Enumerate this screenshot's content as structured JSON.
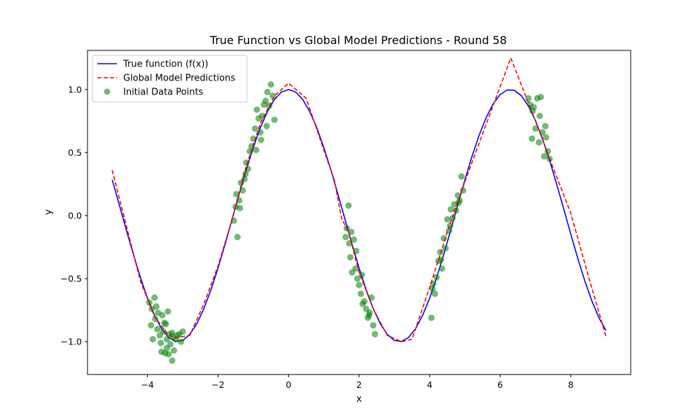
{
  "chart_data": {
    "type": "line",
    "title": "True Function vs Global Model Predictions - Round 58",
    "xlabel": "x",
    "ylabel": "y",
    "xlim": [
      -5.7,
      9.7
    ],
    "ylim": [
      -1.26,
      1.31
    ],
    "xticks": [
      -4,
      -2,
      0,
      2,
      4,
      6,
      8
    ],
    "xtick_labels": [
      "−4",
      "−2",
      "0",
      "2",
      "4",
      "6",
      "8"
    ],
    "yticks": [
      -1.0,
      -0.5,
      0.0,
      0.5,
      1.0
    ],
    "ytick_labels": [
      "−1.0",
      "−0.5",
      "0.0",
      "0.5",
      "1.0"
    ],
    "grid": false,
    "legend_position": "top-left",
    "series": [
      {
        "name": "True function (f(x))",
        "kind": "line",
        "style": "solid",
        "color": "#0000ff",
        "x": [
          -5.0,
          -4.8,
          -4.6,
          -4.4,
          -4.2,
          -4.0,
          -3.8,
          -3.6,
          -3.4,
          -3.2,
          -3.0,
          -2.8,
          -2.6,
          -2.4,
          -2.2,
          -2.0,
          -1.8,
          -1.6,
          -1.4,
          -1.2,
          -1.0,
          -0.8,
          -0.6,
          -0.4,
          -0.2,
          0.0,
          0.2,
          0.4,
          0.6,
          0.8,
          1.0,
          1.2,
          1.4,
          1.6,
          1.8,
          2.0,
          2.2,
          2.4,
          2.6,
          2.8,
          3.0,
          3.2,
          3.4,
          3.6,
          3.8,
          4.0,
          4.2,
          4.4,
          4.6,
          4.8,
          5.0,
          5.2,
          5.4,
          5.6,
          5.8,
          6.0,
          6.2,
          6.4,
          6.6,
          6.8,
          7.0,
          7.2,
          7.4,
          7.6,
          7.8,
          8.0,
          8.2,
          8.4,
          8.6,
          8.8,
          9.0
        ],
        "y": [
          0.284,
          0.087,
          -0.113,
          -0.307,
          -0.49,
          -0.654,
          -0.791,
          -0.897,
          -0.967,
          -0.998,
          -0.99,
          -0.942,
          -0.857,
          -0.737,
          -0.589,
          -0.416,
          -0.227,
          -0.029,
          0.17,
          0.362,
          0.54,
          0.697,
          0.825,
          0.921,
          0.98,
          1.0,
          0.98,
          0.921,
          0.825,
          0.697,
          0.54,
          0.362,
          0.17,
          -0.029,
          -0.227,
          -0.416,
          -0.589,
          -0.737,
          -0.857,
          -0.942,
          -0.99,
          -0.998,
          -0.967,
          -0.897,
          -0.791,
          -0.654,
          -0.49,
          -0.307,
          -0.113,
          0.087,
          0.284,
          0.469,
          0.635,
          0.776,
          0.886,
          0.96,
          0.997,
          0.994,
          0.951,
          0.869,
          0.754,
          0.608,
          0.438,
          0.25,
          0.054,
          -0.146,
          -0.34,
          -0.519,
          -0.677,
          -0.811,
          -0.911
        ]
      },
      {
        "name": "Global Model Predictions",
        "kind": "line",
        "style": "dashed",
        "color": "#ff0000",
        "x": [
          -5.0,
          -4.6,
          -4.2,
          -3.8,
          -3.4,
          -3.2,
          -2.8,
          -2.4,
          -2.0,
          -1.6,
          -1.2,
          -0.8,
          -0.4,
          0.0,
          0.5,
          1.0,
          1.3,
          1.5,
          1.7,
          2.0,
          2.4,
          2.8,
          3.2,
          3.5,
          4.0,
          4.5,
          5.0,
          6.3,
          7.0,
          7.5,
          8.0,
          8.5,
          9.0
        ],
        "y": [
          0.36,
          -0.08,
          -0.52,
          -0.8,
          -0.95,
          -0.97,
          -0.95,
          -0.7,
          -0.4,
          -0.03,
          0.39,
          0.73,
          0.95,
          1.05,
          0.93,
          0.52,
          0.28,
          -0.02,
          -0.13,
          -0.45,
          -0.74,
          -0.95,
          -1.0,
          -0.98,
          -0.57,
          -0.13,
          0.27,
          1.25,
          0.75,
          0.38,
          0.02,
          -0.48,
          -0.96
        ]
      },
      {
        "name": "Initial Data Points",
        "kind": "scatter",
        "color": "#008000",
        "x": [
          -3.95,
          -3.9,
          -3.85,
          -3.8,
          -3.78,
          -3.72,
          -3.7,
          -3.65,
          -3.6,
          -3.58,
          -3.55,
          -3.5,
          -3.48,
          -3.45,
          -3.42,
          -3.4,
          -3.38,
          -3.35,
          -3.3,
          -3.28,
          -3.25,
          -3.2,
          -3.15,
          -3.1,
          -3.05,
          -3.0,
          -3.88,
          -3.62,
          -3.52,
          -3.3,
          -3.75,
          -3.45,
          -1.55,
          -1.5,
          -1.45,
          -1.4,
          -1.35,
          -1.3,
          -1.25,
          -1.2,
          -1.15,
          -1.1,
          -1.05,
          -1.0,
          -0.95,
          -0.9,
          -0.85,
          -0.8,
          -0.75,
          -0.7,
          -0.65,
          -0.6,
          -0.55,
          -0.5,
          -0.45,
          -0.4,
          -1.48,
          -1.38,
          -1.22,
          -0.92,
          -0.78,
          -0.62,
          1.62,
          1.65,
          1.7,
          1.72,
          1.75,
          1.8,
          1.85,
          1.9,
          1.95,
          2.0,
          2.05,
          2.1,
          2.15,
          2.2,
          2.25,
          2.3,
          2.35,
          2.4,
          2.45,
          1.78,
          1.92,
          2.08,
          2.28,
          4.05,
          4.1,
          4.15,
          4.2,
          4.25,
          4.3,
          4.35,
          4.4,
          4.45,
          4.5,
          4.55,
          4.6,
          4.65,
          4.7,
          4.75,
          4.8,
          4.85,
          4.9,
          4.95,
          4.08,
          4.32,
          4.58,
          4.82,
          6.8,
          6.85,
          6.9,
          6.95,
          7.0,
          7.05,
          7.1,
          7.15,
          7.2,
          7.25,
          7.3,
          7.35,
          7.4,
          6.92,
          7.12,
          7.28
        ],
        "y": [
          -0.69,
          -0.87,
          -0.98,
          -0.65,
          -0.82,
          -0.9,
          -0.77,
          -0.95,
          -1.08,
          -0.79,
          -0.92,
          -1.09,
          -0.86,
          -1.05,
          -0.76,
          -1.1,
          -0.94,
          -1.02,
          -1.15,
          -0.96,
          -1.07,
          -0.98,
          -0.95,
          -0.94,
          -1.0,
          -0.92,
          -0.74,
          -1.01,
          -0.85,
          -0.93,
          -0.72,
          -0.98,
          -0.04,
          0.07,
          -0.17,
          0.12,
          0.26,
          0.2,
          0.29,
          0.42,
          0.37,
          0.51,
          0.55,
          0.61,
          0.69,
          0.84,
          0.77,
          0.66,
          0.79,
          0.88,
          0.91,
          0.98,
          0.87,
          1.04,
          0.95,
          0.76,
          0.17,
          0.06,
          0.33,
          0.52,
          0.6,
          0.71,
          -0.17,
          -0.1,
          0.08,
          -0.22,
          -0.33,
          -0.45,
          -0.19,
          -0.42,
          -0.5,
          -0.55,
          -0.62,
          -0.7,
          -0.68,
          -0.74,
          -0.81,
          -0.77,
          -0.65,
          -0.87,
          -0.94,
          -0.13,
          -0.28,
          -0.47,
          -0.79,
          -0.81,
          -0.54,
          -0.62,
          -0.49,
          -0.36,
          -0.29,
          -0.42,
          -0.18,
          -0.26,
          -0.03,
          -0.12,
          0.05,
          -0.02,
          0.09,
          0.04,
          0.16,
          0.12,
          0.31,
          0.2,
          -0.58,
          -0.35,
          -0.08,
          0.1,
          0.93,
          0.88,
          0.61,
          0.86,
          0.69,
          0.93,
          0.58,
          0.94,
          0.66,
          0.47,
          0.62,
          0.51,
          0.45,
          0.83,
          0.79,
          0.71
        ]
      }
    ]
  }
}
